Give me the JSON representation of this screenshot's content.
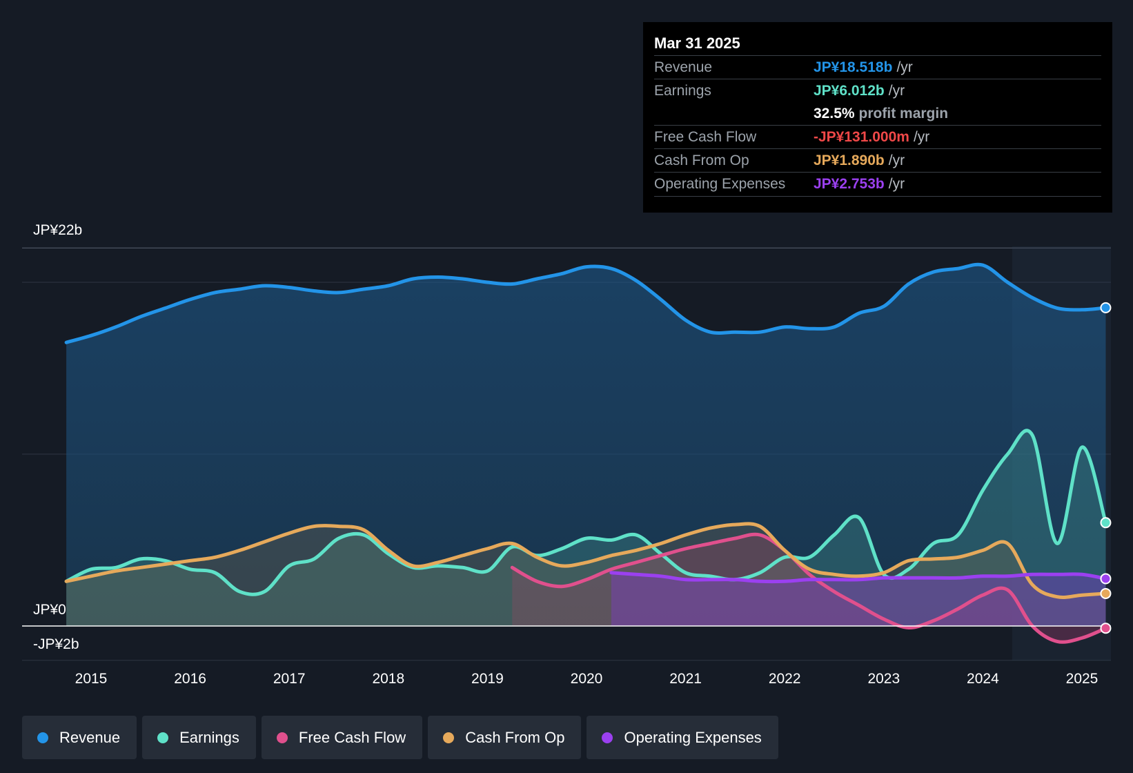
{
  "chart_data": {
    "type": "area",
    "title": "",
    "y_axis": {
      "labels": [
        "JP¥22b",
        "JP¥0",
        "-JP¥2b"
      ],
      "ylim": [
        -2,
        22
      ],
      "unit": "JP¥b"
    },
    "x_axis": {
      "ticks": [
        "2015",
        "2016",
        "2017",
        "2018",
        "2019",
        "2020",
        "2021",
        "2022",
        "2023",
        "2024",
        "2025"
      ],
      "xlim": [
        2014.74,
        2025.24
      ]
    },
    "series": [
      {
        "name": "Revenue",
        "color": "#2394e8",
        "points": [
          [
            2014.75,
            16.5
          ],
          [
            2015.0,
            16.9
          ],
          [
            2015.25,
            17.4
          ],
          [
            2015.5,
            18.0
          ],
          [
            2015.75,
            18.5
          ],
          [
            2016.0,
            19.0
          ],
          [
            2016.25,
            19.4
          ],
          [
            2016.5,
            19.6
          ],
          [
            2016.75,
            19.8
          ],
          [
            2017.0,
            19.7
          ],
          [
            2017.25,
            19.5
          ],
          [
            2017.5,
            19.4
          ],
          [
            2017.75,
            19.6
          ],
          [
            2018.0,
            19.8
          ],
          [
            2018.25,
            20.2
          ],
          [
            2018.5,
            20.3
          ],
          [
            2018.75,
            20.2
          ],
          [
            2019.0,
            20.0
          ],
          [
            2019.25,
            19.9
          ],
          [
            2019.5,
            20.2
          ],
          [
            2019.75,
            20.5
          ],
          [
            2020.0,
            20.9
          ],
          [
            2020.25,
            20.8
          ],
          [
            2020.5,
            20.1
          ],
          [
            2020.75,
            19.0
          ],
          [
            2021.0,
            17.8
          ],
          [
            2021.25,
            17.1
          ],
          [
            2021.5,
            17.1
          ],
          [
            2021.75,
            17.1
          ],
          [
            2022.0,
            17.4
          ],
          [
            2022.25,
            17.3
          ],
          [
            2022.5,
            17.4
          ],
          [
            2022.75,
            18.2
          ],
          [
            2023.0,
            18.6
          ],
          [
            2023.25,
            19.9
          ],
          [
            2023.5,
            20.6
          ],
          [
            2023.75,
            20.8
          ],
          [
            2024.0,
            21.0
          ],
          [
            2024.25,
            20.0
          ],
          [
            2024.5,
            19.1
          ],
          [
            2024.75,
            18.5
          ],
          [
            2025.0,
            18.4
          ],
          [
            2025.24,
            18.518
          ]
        ]
      },
      {
        "name": "Earnings",
        "color": "#5fe1c8",
        "points": [
          [
            2014.75,
            2.6
          ],
          [
            2015.0,
            3.3
          ],
          [
            2015.25,
            3.4
          ],
          [
            2015.5,
            3.9
          ],
          [
            2015.75,
            3.8
          ],
          [
            2016.0,
            3.3
          ],
          [
            2016.25,
            3.1
          ],
          [
            2016.5,
            2.0
          ],
          [
            2016.75,
            2.0
          ],
          [
            2017.0,
            3.5
          ],
          [
            2017.25,
            3.9
          ],
          [
            2017.5,
            5.1
          ],
          [
            2017.75,
            5.3
          ],
          [
            2018.0,
            4.2
          ],
          [
            2018.25,
            3.4
          ],
          [
            2018.5,
            3.5
          ],
          [
            2018.75,
            3.4
          ],
          [
            2019.0,
            3.2
          ],
          [
            2019.25,
            4.6
          ],
          [
            2019.5,
            4.1
          ],
          [
            2019.75,
            4.5
          ],
          [
            2020.0,
            5.1
          ],
          [
            2020.25,
            5.0
          ],
          [
            2020.5,
            5.3
          ],
          [
            2020.75,
            4.2
          ],
          [
            2021.0,
            3.1
          ],
          [
            2021.25,
            2.9
          ],
          [
            2021.5,
            2.7
          ],
          [
            2021.75,
            3.1
          ],
          [
            2022.0,
            4.0
          ],
          [
            2022.25,
            4.0
          ],
          [
            2022.5,
            5.3
          ],
          [
            2022.75,
            6.3
          ],
          [
            2023.0,
            3.0
          ],
          [
            2023.25,
            3.3
          ],
          [
            2023.5,
            4.8
          ],
          [
            2023.75,
            5.3
          ],
          [
            2024.0,
            7.9
          ],
          [
            2024.25,
            10.0
          ],
          [
            2024.5,
            11.1
          ],
          [
            2024.75,
            4.8
          ],
          [
            2025.0,
            10.4
          ],
          [
            2025.24,
            6.012
          ]
        ]
      },
      {
        "name": "Free Cash Flow",
        "color": "#e0508d",
        "points": [
          [
            2019.25,
            3.4
          ],
          [
            2019.5,
            2.6
          ],
          [
            2019.75,
            2.3
          ],
          [
            2020.0,
            2.7
          ],
          [
            2020.25,
            3.3
          ],
          [
            2020.5,
            3.7
          ],
          [
            2020.75,
            4.1
          ],
          [
            2021.0,
            4.5
          ],
          [
            2021.25,
            4.8
          ],
          [
            2021.5,
            5.1
          ],
          [
            2021.75,
            5.3
          ],
          [
            2022.0,
            4.4
          ],
          [
            2022.25,
            3.0
          ],
          [
            2022.5,
            2.0
          ],
          [
            2022.75,
            1.2
          ],
          [
            2023.0,
            0.4
          ],
          [
            2023.25,
            -0.1
          ],
          [
            2023.5,
            0.3
          ],
          [
            2023.75,
            1.0
          ],
          [
            2024.0,
            1.8
          ],
          [
            2024.25,
            2.1
          ],
          [
            2024.5,
            0.0
          ],
          [
            2024.75,
            -0.9
          ],
          [
            2025.0,
            -0.7
          ],
          [
            2025.24,
            -0.131
          ]
        ]
      },
      {
        "name": "Cash From Op",
        "color": "#e6a95b",
        "points": [
          [
            2014.75,
            2.6
          ],
          [
            2015.0,
            2.9
          ],
          [
            2015.25,
            3.2
          ],
          [
            2015.5,
            3.4
          ],
          [
            2015.75,
            3.6
          ],
          [
            2016.0,
            3.8
          ],
          [
            2016.25,
            4.0
          ],
          [
            2016.5,
            4.4
          ],
          [
            2016.75,
            4.9
          ],
          [
            2017.0,
            5.4
          ],
          [
            2017.25,
            5.8
          ],
          [
            2017.5,
            5.8
          ],
          [
            2017.75,
            5.6
          ],
          [
            2018.0,
            4.4
          ],
          [
            2018.25,
            3.5
          ],
          [
            2018.5,
            3.7
          ],
          [
            2018.75,
            4.1
          ],
          [
            2019.0,
            4.5
          ],
          [
            2019.25,
            4.8
          ],
          [
            2019.5,
            4.0
          ],
          [
            2019.75,
            3.5
          ],
          [
            2020.0,
            3.7
          ],
          [
            2020.25,
            4.1
          ],
          [
            2020.5,
            4.4
          ],
          [
            2020.75,
            4.8
          ],
          [
            2021.0,
            5.3
          ],
          [
            2021.25,
            5.7
          ],
          [
            2021.5,
            5.9
          ],
          [
            2021.75,
            5.8
          ],
          [
            2022.0,
            4.4
          ],
          [
            2022.25,
            3.3
          ],
          [
            2022.5,
            3.0
          ],
          [
            2022.75,
            2.9
          ],
          [
            2023.0,
            3.1
          ],
          [
            2023.25,
            3.8
          ],
          [
            2023.5,
            3.9
          ],
          [
            2023.75,
            4.0
          ],
          [
            2024.0,
            4.4
          ],
          [
            2024.25,
            4.8
          ],
          [
            2024.5,
            2.4
          ],
          [
            2024.75,
            1.7
          ],
          [
            2025.0,
            1.8
          ],
          [
            2025.24,
            1.89
          ]
        ]
      },
      {
        "name": "Operating Expenses",
        "color": "#9b40f0",
        "points": [
          [
            2020.25,
            3.1
          ],
          [
            2020.5,
            3.0
          ],
          [
            2020.75,
            2.9
          ],
          [
            2021.0,
            2.7
          ],
          [
            2021.25,
            2.7
          ],
          [
            2021.5,
            2.7
          ],
          [
            2021.75,
            2.6
          ],
          [
            2022.0,
            2.6
          ],
          [
            2022.25,
            2.7
          ],
          [
            2022.5,
            2.7
          ],
          [
            2022.75,
            2.7
          ],
          [
            2023.0,
            2.8
          ],
          [
            2023.25,
            2.8
          ],
          [
            2023.5,
            2.8
          ],
          [
            2023.75,
            2.8
          ],
          [
            2024.0,
            2.9
          ],
          [
            2024.25,
            2.9
          ],
          [
            2024.5,
            3.0
          ],
          [
            2024.75,
            3.0
          ],
          [
            2025.0,
            3.0
          ],
          [
            2025.24,
            2.753
          ]
        ]
      }
    ]
  },
  "tooltip": {
    "date": "Mar 31 2025",
    "revenue": {
      "label": "Revenue",
      "value": "JP¥18.518b",
      "unit": "/yr"
    },
    "earnings": {
      "label": "Earnings",
      "value": "JP¥6.012b",
      "unit": "/yr"
    },
    "margin": {
      "value": "32.5%",
      "text": "profit margin"
    },
    "fcf": {
      "label": "Free Cash Flow",
      "value": "-JP¥131.000m",
      "unit": "/yr"
    },
    "cfo": {
      "label": "Cash From Op",
      "value": "JP¥1.890b",
      "unit": "/yr"
    },
    "opex": {
      "label": "Operating Expenses",
      "value": "JP¥2.753b",
      "unit": "/yr"
    }
  },
  "colors": {
    "revenue": "#2394e8",
    "earnings": "#5fe1c8",
    "fcf": "#e0508d",
    "cfo": "#e6a95b",
    "opex": "#9b40f0",
    "negative": "#f04848"
  },
  "legend": {
    "revenue": "Revenue",
    "earnings": "Earnings",
    "fcf": "Free Cash Flow",
    "cfo": "Cash From Op",
    "opex": "Operating Expenses"
  }
}
